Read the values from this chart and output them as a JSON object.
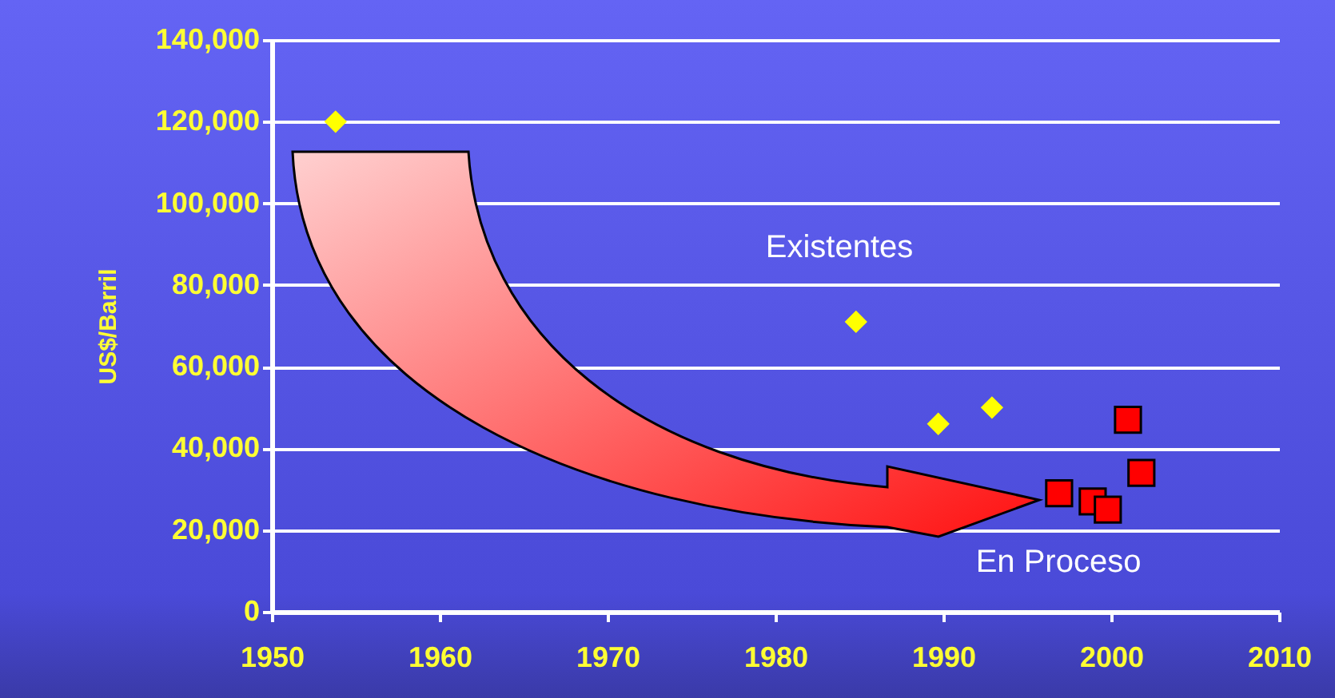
{
  "chart_data": {
    "type": "scatter",
    "ylabel": "US$/Barril",
    "xlim": [
      1950,
      2010
    ],
    "xticks": [
      1950,
      1960,
      1970,
      1980,
      1990,
      2000,
      2010
    ],
    "ylim": [
      0,
      140000
    ],
    "yticks": [
      0,
      {
        "value": 20000,
        "label": "20,000"
      },
      {
        "value": 40000,
        "label": "40,000"
      },
      {
        "value": 60000,
        "label": "60,000"
      },
      {
        "value": 80000,
        "label": "80,000"
      },
      {
        "value": 100000,
        "label": "100,000"
      },
      {
        "value": 120000,
        "label": "120,000"
      },
      {
        "value": 140000,
        "label": "140,000"
      }
    ],
    "grid": "y",
    "series": [
      {
        "name": "Existentes",
        "color": "#ffff00",
        "marker": "diamond",
        "x": [
          1953.8,
          1984.8,
          1989.7,
          1992.9
        ],
        "values": [
          120000,
          71000,
          46000,
          50000
        ]
      },
      {
        "name": "En Proceso",
        "color": "#ff0000",
        "marker": "square",
        "x": [
          1996.9,
          1998.9,
          1999.8,
          2001.0,
          2001.8
        ],
        "values": [
          29000,
          27000,
          25000,
          47000,
          34000
        ]
      }
    ]
  }
}
